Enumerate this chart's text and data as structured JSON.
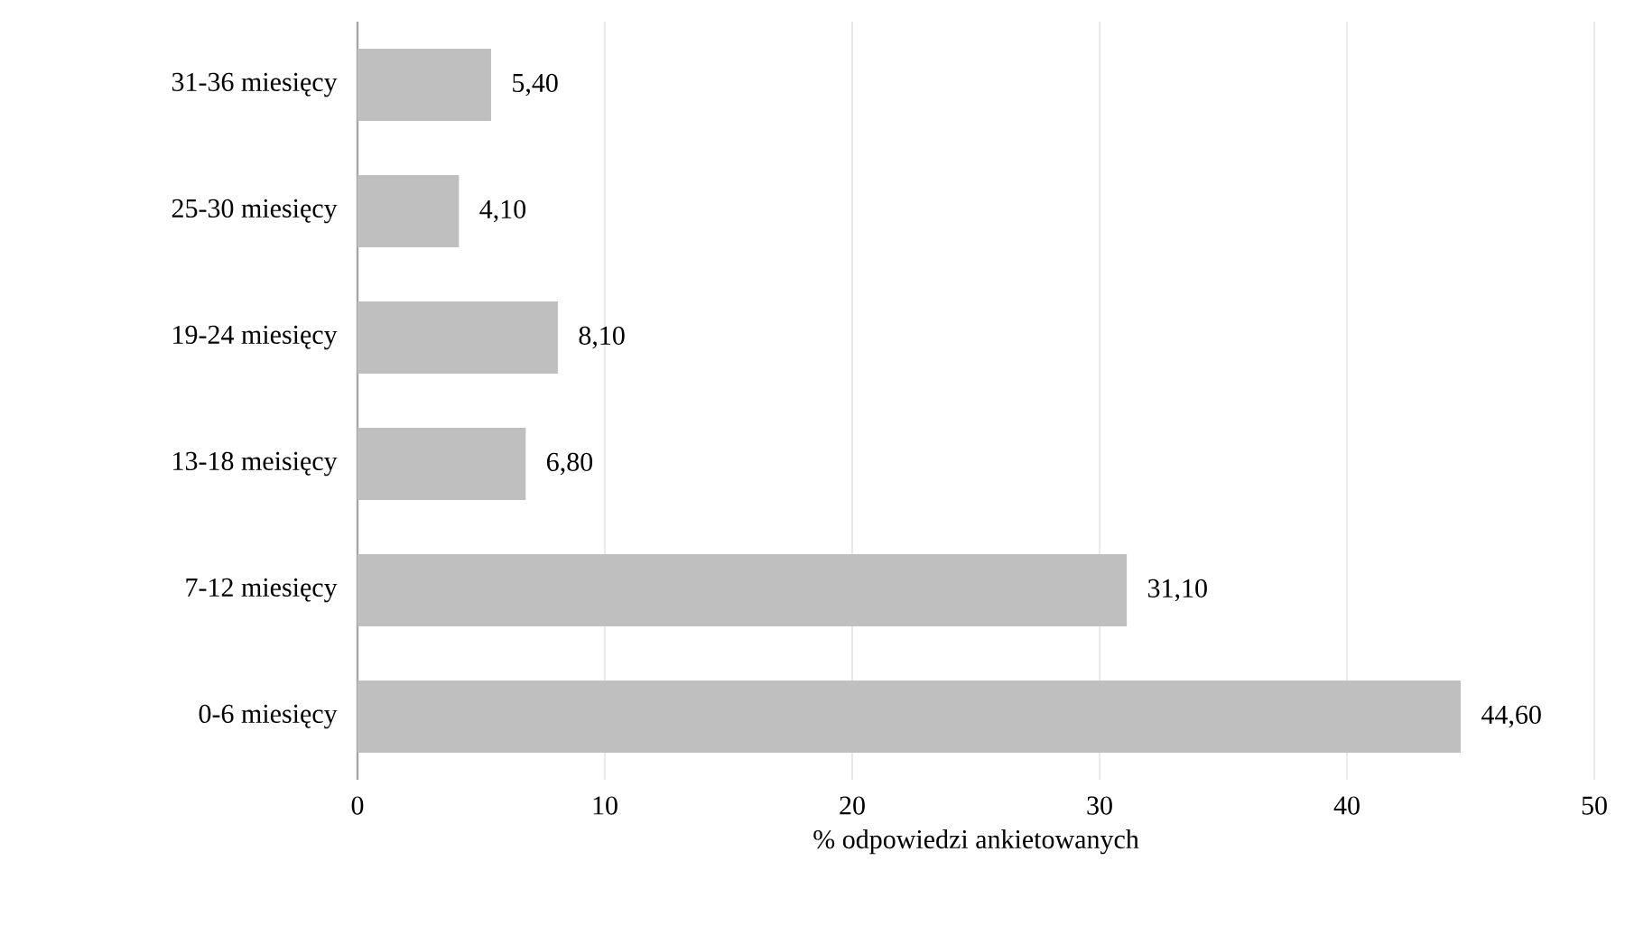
{
  "chart_data": {
    "type": "bar",
    "orientation": "horizontal",
    "xlabel": "% odpowiedzi ankietowanych",
    "categories": [
      "31-36 miesięcy",
      "25-30 miesięcy",
      "19-24 miesięcy",
      "13-18 meisięcy",
      "7-12 miesięcy",
      "0-6 miesięcy"
    ],
    "values": [
      5.4,
      4.1,
      8.1,
      6.8,
      31.1,
      44.6
    ],
    "value_labels": [
      "5,40",
      "4,10",
      "8,10",
      "6,80",
      "31,10",
      "44,60"
    ],
    "color": "#bfbfbf",
    "xlim": [
      0,
      50
    ],
    "xticks": [
      0,
      10,
      20,
      30,
      40,
      50
    ],
    "grid": "x"
  }
}
